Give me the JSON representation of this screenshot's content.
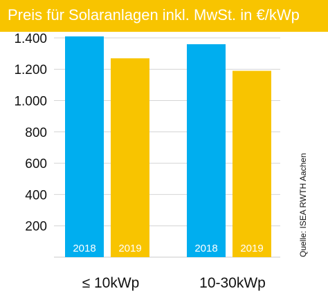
{
  "chart_data": {
    "type": "bar",
    "title": "Preis für Solaranlagen inkl. MwSt. in €/kWp",
    "categories": [
      "≤ 10kWp",
      "10-30kWp"
    ],
    "series": [
      {
        "name": "2018",
        "values": [
          1410,
          1360
        ],
        "color": "#00aeef"
      },
      {
        "name": "2019",
        "values": [
          1270,
          1190
        ],
        "color": "#f8c400"
      }
    ],
    "ylim": [
      0,
      1450
    ],
    "yticks": [
      200,
      400,
      600,
      800,
      1000,
      1200,
      1400
    ],
    "ytick_labels": [
      "200",
      "400",
      "600",
      "800",
      "1.000",
      "1.200",
      "1.400"
    ],
    "grid": true,
    "source": "Quelle: ISEA RWTH Aachen",
    "xlabel": "",
    "ylabel": ""
  }
}
